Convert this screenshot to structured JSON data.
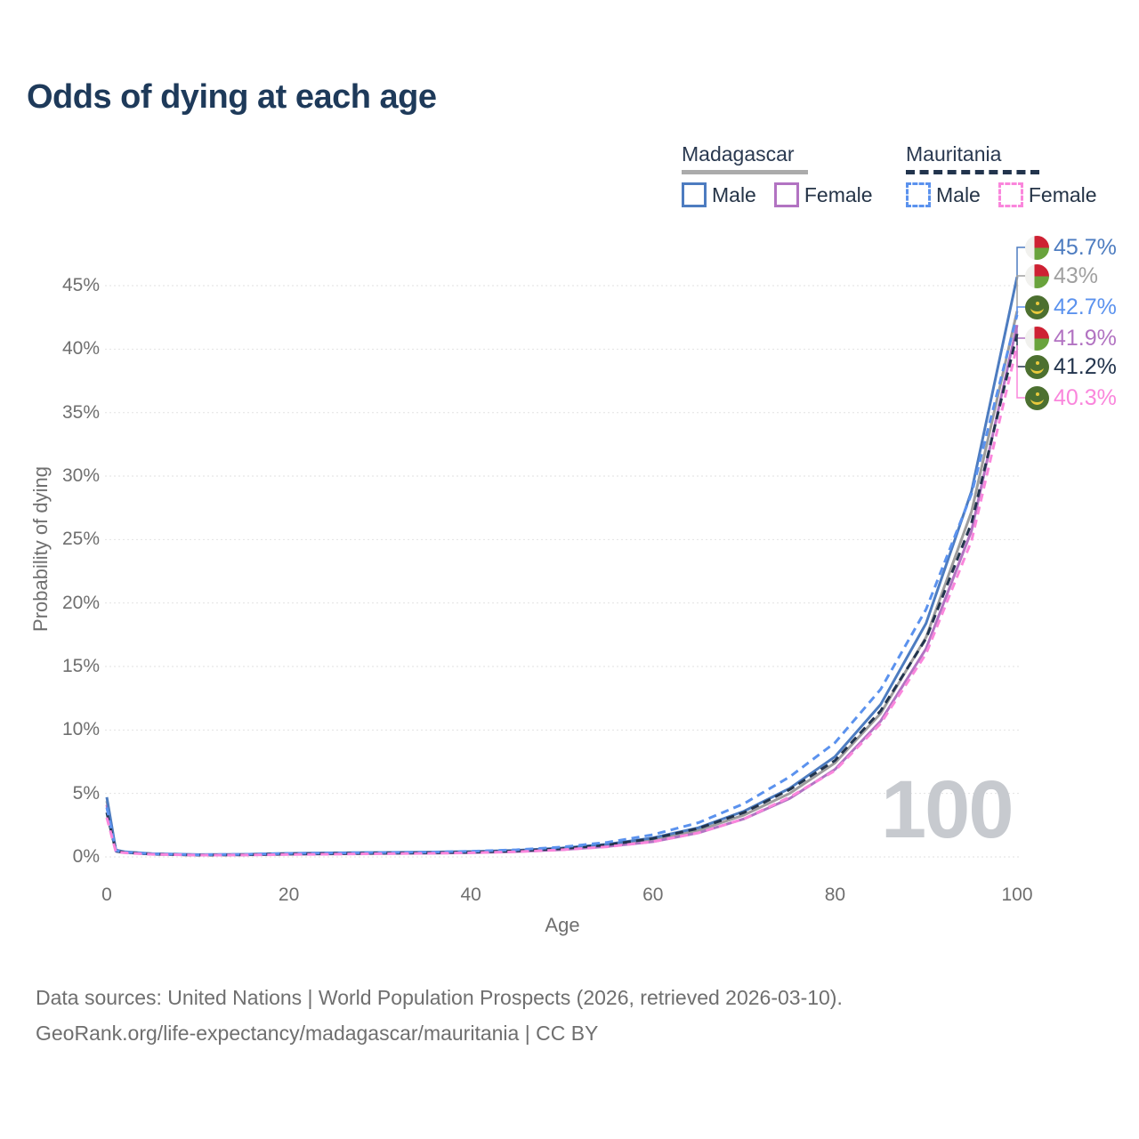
{
  "title": "Odds of dying at each age",
  "legend": {
    "groups": [
      {
        "name": "Madagascar",
        "style": "solid",
        "underline_color": "#ababab",
        "items": [
          {
            "label": "Male",
            "color": "#4d7cc0"
          },
          {
            "label": "Female",
            "color": "#b273c2"
          }
        ]
      },
      {
        "name": "Mauritania",
        "style": "dashed",
        "underline_color": "#22344d",
        "items": [
          {
            "label": "Male",
            "color": "#5b92ee"
          },
          {
            "label": "Female",
            "color": "#fa86dc"
          }
        ]
      }
    ]
  },
  "y_axis": {
    "label": "Probability of dying",
    "tick_values": [
      0,
      5,
      10,
      15,
      20,
      25,
      30,
      35,
      40,
      45
    ],
    "tick_suffix": "%"
  },
  "x_axis": {
    "label": "Age",
    "tick_values": [
      0,
      20,
      40,
      60,
      80,
      100
    ]
  },
  "watermark": "100",
  "end_labels": [
    {
      "value": "45.7%",
      "series": "Madagascar Male",
      "flag": "madagascar",
      "color": "#4d7cc0",
      "y_value": 45.7
    },
    {
      "value": "43%",
      "series": "Madagascar Both sexes",
      "flag": "madagascar",
      "color": "#a0a0a0",
      "y_value": 43
    },
    {
      "value": "42.7%",
      "series": "Mauritania Male",
      "flag": "mauritania",
      "color": "#5b92ee",
      "y_value": 42.7
    },
    {
      "value": "41.9%",
      "series": "Madagascar Female",
      "flag": "madagascar",
      "color": "#b273c2",
      "y_value": 41.9
    },
    {
      "value": "41.2%",
      "series": "Mauritania Both sexes",
      "flag": "mauritania",
      "color": "#22344d",
      "y_value": 41.2
    },
    {
      "value": "40.3%",
      "series": "Mauritania Female",
      "flag": "mauritania",
      "color": "#fa86dc",
      "y_value": 40.3
    }
  ],
  "footer": {
    "line1": "Data sources: United Nations | World Population Prospects (2026, retrieved 2026-03-10).",
    "line2": "GeoRank.org/life-expectancy/madagascar/mauritania | CC BY"
  },
  "chart_data": {
    "type": "line",
    "title": "Odds of dying at each age",
    "xlabel": "Age",
    "ylabel": "Probability of dying",
    "xlim": [
      0,
      100
    ],
    "ylim": [
      0,
      45
    ],
    "grid": "horizontal",
    "legend_position": "top-right",
    "x": [
      0,
      1,
      2,
      5,
      10,
      15,
      20,
      25,
      30,
      35,
      40,
      45,
      50,
      55,
      60,
      65,
      70,
      75,
      80,
      85,
      90,
      95,
      100
    ],
    "series": [
      {
        "name": "Madagascar Both sexes",
        "color": "#9d9d9d",
        "dash": "solid",
        "values": [
          4.4,
          0.5,
          0.38,
          0.23,
          0.16,
          0.18,
          0.25,
          0.28,
          0.31,
          0.33,
          0.38,
          0.47,
          0.63,
          0.9,
          1.35,
          2.1,
          3.3,
          5.0,
          7.4,
          11.3,
          17.3,
          27.2,
          43.0
        ]
      },
      {
        "name": "Madagascar Female",
        "color": "#b273c2",
        "dash": "solid",
        "values": [
          4.1,
          0.45,
          0.35,
          0.21,
          0.15,
          0.16,
          0.21,
          0.24,
          0.27,
          0.29,
          0.33,
          0.42,
          0.57,
          0.82,
          1.2,
          1.9,
          3.0,
          4.6,
          6.9,
          10.7,
          16.4,
          25.7,
          41.9
        ]
      },
      {
        "name": "Madagascar Male",
        "color": "#4d7cc0",
        "dash": "solid",
        "values": [
          4.7,
          0.55,
          0.4,
          0.25,
          0.18,
          0.2,
          0.28,
          0.32,
          0.35,
          0.38,
          0.42,
          0.52,
          0.7,
          1.0,
          1.5,
          2.3,
          3.6,
          5.4,
          7.9,
          12.0,
          18.4,
          28.8,
          45.7
        ]
      },
      {
        "name": "Mauritania Both sexes",
        "color": "#22344d",
        "dash": "dashed",
        "values": [
          3.5,
          0.45,
          0.35,
          0.22,
          0.15,
          0.17,
          0.23,
          0.26,
          0.29,
          0.32,
          0.37,
          0.47,
          0.65,
          0.95,
          1.45,
          2.25,
          3.5,
          5.3,
          7.6,
          11.5,
          17.2,
          26.3,
          41.2
        ]
      },
      {
        "name": "Mauritania Male",
        "color": "#5b92ee",
        "dash": "dashed",
        "values": [
          3.9,
          0.5,
          0.38,
          0.24,
          0.17,
          0.2,
          0.27,
          0.31,
          0.34,
          0.38,
          0.44,
          0.56,
          0.78,
          1.15,
          1.75,
          2.7,
          4.2,
          6.3,
          9.0,
          13.2,
          19.5,
          28.6,
          42.7
        ]
      },
      {
        "name": "Mauritania Female",
        "color": "#fa86dc",
        "dash": "dashed",
        "values": [
          3.1,
          0.4,
          0.32,
          0.2,
          0.14,
          0.15,
          0.19,
          0.22,
          0.25,
          0.28,
          0.32,
          0.41,
          0.56,
          0.8,
          1.2,
          1.9,
          3.0,
          4.7,
          6.8,
          10.5,
          16.0,
          24.9,
          40.3
        ]
      }
    ]
  }
}
